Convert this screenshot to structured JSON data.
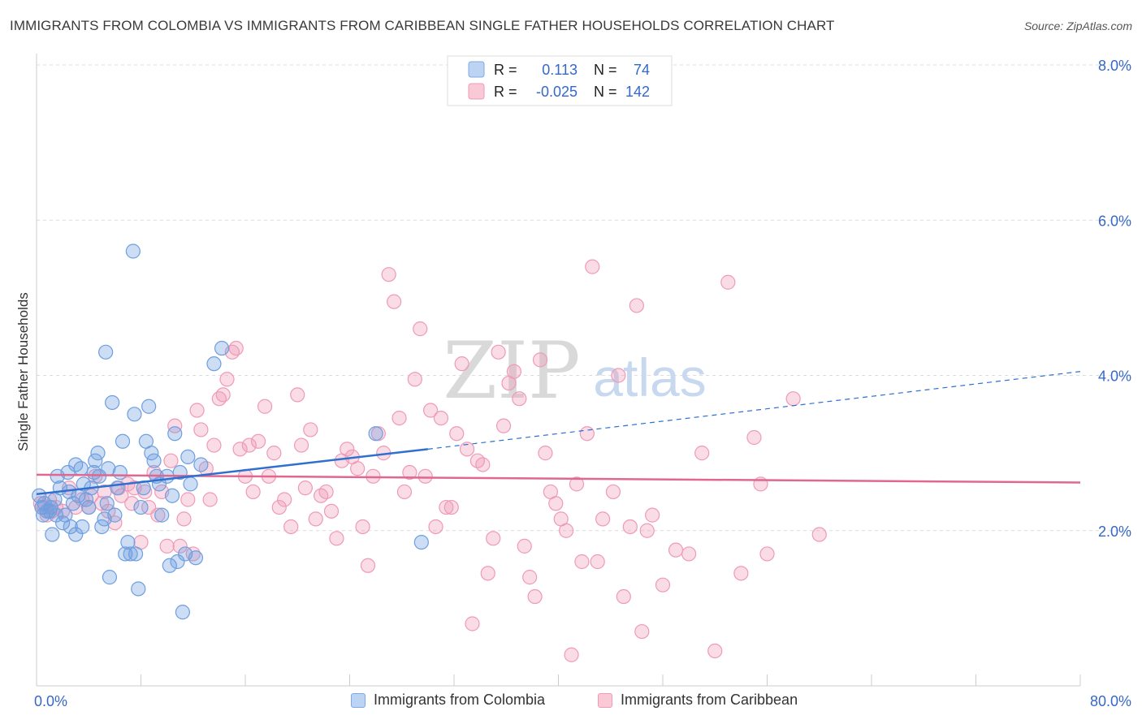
{
  "header": {
    "title": "IMMIGRANTS FROM COLOMBIA VS IMMIGRANTS FROM CARIBBEAN SINGLE FATHER HOUSEHOLDS CORRELATION CHART",
    "source": "Source: ZipAtlas.com"
  },
  "watermark": {
    "zip": "ZIP",
    "atlas": "atlas"
  },
  "stats": [
    {
      "r_label": "R =",
      "r_value": "0.113",
      "n_label": "N =",
      "n_value": "74"
    },
    {
      "r_label": "R =",
      "r_value": "-0.025",
      "n_label": "N =",
      "n_value": "142"
    }
  ],
  "legend": {
    "colombia": "Immigrants from Colombia",
    "caribbean": "Immigrants from Caribbean"
  },
  "chart_data": {
    "type": "scatter",
    "title": "IMMIGRANTS FROM COLOMBIA VS IMMIGRANTS FROM CARIBBEAN SINGLE FATHER HOUSEHOLDS CORRELATION CHART",
    "xlabel": "",
    "ylabel": "Single Father Households",
    "xlim": [
      0,
      80
    ],
    "ylim": [
      0,
      8
    ],
    "x_tick_labels": [
      "0.0%",
      "80.0%"
    ],
    "y_tick_labels": [
      "2.0%",
      "4.0%",
      "6.0%",
      "8.0%"
    ],
    "y_ticks": [
      2,
      4,
      6,
      8
    ],
    "grid": true,
    "legend_position": "bottom",
    "colors": {
      "colombia": "#6e9fe0",
      "caribbean": "#ef9ab6",
      "colombia_line": "#2e6fd0",
      "caribbean_line": "#e06790",
      "tick_label": "#3568c8"
    },
    "series": [
      {
        "name": "Immigrants from Colombia",
        "points": [
          [
            0.2,
            2.45
          ],
          [
            0.4,
            2.3
          ],
          [
            0.5,
            2.2
          ],
          [
            0.6,
            2.35
          ],
          [
            0.8,
            2.25
          ],
          [
            1.0,
            2.25
          ],
          [
            1.1,
            2.3
          ],
          [
            1.2,
            1.95
          ],
          [
            1.4,
            2.4
          ],
          [
            1.5,
            2.2
          ],
          [
            1.6,
            2.7
          ],
          [
            1.8,
            2.55
          ],
          [
            2.0,
            2.1
          ],
          [
            2.2,
            2.2
          ],
          [
            2.4,
            2.75
          ],
          [
            2.5,
            2.5
          ],
          [
            2.6,
            2.05
          ],
          [
            2.8,
            2.35
          ],
          [
            3.0,
            1.95
          ],
          [
            3.0,
            2.85
          ],
          [
            3.2,
            2.45
          ],
          [
            3.4,
            2.8
          ],
          [
            3.5,
            2.05
          ],
          [
            3.6,
            2.6
          ],
          [
            3.8,
            2.4
          ],
          [
            4.0,
            2.3
          ],
          [
            4.2,
            2.55
          ],
          [
            4.4,
            2.75
          ],
          [
            4.5,
            2.9
          ],
          [
            4.7,
            3.0
          ],
          [
            4.8,
            2.7
          ],
          [
            5.0,
            2.05
          ],
          [
            5.2,
            2.15
          ],
          [
            5.3,
            4.3
          ],
          [
            5.4,
            2.35
          ],
          [
            5.5,
            2.8
          ],
          [
            5.6,
            1.4
          ],
          [
            5.8,
            3.65
          ],
          [
            6.0,
            2.2
          ],
          [
            6.2,
            2.55
          ],
          [
            6.4,
            2.75
          ],
          [
            6.6,
            3.15
          ],
          [
            6.8,
            1.7
          ],
          [
            7.0,
            1.85
          ],
          [
            7.2,
            1.7
          ],
          [
            7.4,
            5.6
          ],
          [
            7.5,
            3.5
          ],
          [
            7.6,
            1.7
          ],
          [
            7.8,
            1.25
          ],
          [
            8.0,
            2.3
          ],
          [
            8.2,
            2.55
          ],
          [
            8.4,
            3.15
          ],
          [
            8.6,
            3.6
          ],
          [
            8.8,
            3.0
          ],
          [
            9.0,
            2.9
          ],
          [
            9.2,
            2.7
          ],
          [
            9.4,
            2.6
          ],
          [
            9.6,
            2.2
          ],
          [
            10.0,
            2.7
          ],
          [
            10.2,
            1.55
          ],
          [
            10.4,
            2.45
          ],
          [
            10.6,
            3.25
          ],
          [
            10.8,
            1.6
          ],
          [
            11.0,
            2.75
          ],
          [
            11.2,
            0.95
          ],
          [
            11.4,
            1.7
          ],
          [
            11.6,
            2.95
          ],
          [
            11.8,
            2.6
          ],
          [
            12.2,
            1.65
          ],
          [
            12.6,
            2.85
          ],
          [
            13.6,
            4.15
          ],
          [
            14.2,
            4.35
          ],
          [
            26.0,
            3.25
          ],
          [
            29.5,
            1.85
          ]
        ]
      },
      {
        "name": "Immigrants from Caribbean",
        "points": [
          [
            0.3,
            2.35
          ],
          [
            0.6,
            2.3
          ],
          [
            0.8,
            2.2
          ],
          [
            1.0,
            2.4
          ],
          [
            1.2,
            2.25
          ],
          [
            1.5,
            2.3
          ],
          [
            2.0,
            2.25
          ],
          [
            2.5,
            2.55
          ],
          [
            3.0,
            2.3
          ],
          [
            3.5,
            2.4
          ],
          [
            4.0,
            2.3
          ],
          [
            4.2,
            2.45
          ],
          [
            4.5,
            2.7
          ],
          [
            5.0,
            2.35
          ],
          [
            5.2,
            2.5
          ],
          [
            5.5,
            2.25
          ],
          [
            6.0,
            2.1
          ],
          [
            6.3,
            2.55
          ],
          [
            6.5,
            2.45
          ],
          [
            7.0,
            2.6
          ],
          [
            7.3,
            2.35
          ],
          [
            7.5,
            2.55
          ],
          [
            8.0,
            1.85
          ],
          [
            8.3,
            2.5
          ],
          [
            8.6,
            2.3
          ],
          [
            9.0,
            2.75
          ],
          [
            9.3,
            2.2
          ],
          [
            9.6,
            2.5
          ],
          [
            10.0,
            1.8
          ],
          [
            10.3,
            2.9
          ],
          [
            10.6,
            3.35
          ],
          [
            11.0,
            1.8
          ],
          [
            11.3,
            2.15
          ],
          [
            11.6,
            2.4
          ],
          [
            12.0,
            1.7
          ],
          [
            12.3,
            3.55
          ],
          [
            12.6,
            3.3
          ],
          [
            13.0,
            2.8
          ],
          [
            13.3,
            2.4
          ],
          [
            13.6,
            3.1
          ],
          [
            14.0,
            3.7
          ],
          [
            14.3,
            3.75
          ],
          [
            14.6,
            3.95
          ],
          [
            15.0,
            4.3
          ],
          [
            15.3,
            4.35
          ],
          [
            15.6,
            3.05
          ],
          [
            16.0,
            2.7
          ],
          [
            16.3,
            3.1
          ],
          [
            16.6,
            2.5
          ],
          [
            17.0,
            3.15
          ],
          [
            17.5,
            3.6
          ],
          [
            17.8,
            2.7
          ],
          [
            18.2,
            3.0
          ],
          [
            18.6,
            2.3
          ],
          [
            19.0,
            2.4
          ],
          [
            19.5,
            2.05
          ],
          [
            20.0,
            3.75
          ],
          [
            20.3,
            3.1
          ],
          [
            20.6,
            2.55
          ],
          [
            21.0,
            3.3
          ],
          [
            21.4,
            2.15
          ],
          [
            21.8,
            2.45
          ],
          [
            22.2,
            2.5
          ],
          [
            22.6,
            2.25
          ],
          [
            23.0,
            1.9
          ],
          [
            23.4,
            2.9
          ],
          [
            23.8,
            3.05
          ],
          [
            24.2,
            2.95
          ],
          [
            24.6,
            2.8
          ],
          [
            25.0,
            2.05
          ],
          [
            25.4,
            1.55
          ],
          [
            25.8,
            2.7
          ],
          [
            26.2,
            3.25
          ],
          [
            26.6,
            3.0
          ],
          [
            27.0,
            5.3
          ],
          [
            27.4,
            4.95
          ],
          [
            27.8,
            3.45
          ],
          [
            28.2,
            2.5
          ],
          [
            28.6,
            2.75
          ],
          [
            29.0,
            3.95
          ],
          [
            29.4,
            4.6
          ],
          [
            29.8,
            2.7
          ],
          [
            30.2,
            3.55
          ],
          [
            30.6,
            2.05
          ],
          [
            31.0,
            3.45
          ],
          [
            31.4,
            2.3
          ],
          [
            31.8,
            2.3
          ],
          [
            32.2,
            3.25
          ],
          [
            32.6,
            4.15
          ],
          [
            33.0,
            3.05
          ],
          [
            33.4,
            0.8
          ],
          [
            33.8,
            2.9
          ],
          [
            34.2,
            2.85
          ],
          [
            34.6,
            1.45
          ],
          [
            35.0,
            1.9
          ],
          [
            35.4,
            4.3
          ],
          [
            35.8,
            3.35
          ],
          [
            36.2,
            3.9
          ],
          [
            36.6,
            4.05
          ],
          [
            37.0,
            3.7
          ],
          [
            37.4,
            1.8
          ],
          [
            37.8,
            1.4
          ],
          [
            38.2,
            1.15
          ],
          [
            38.6,
            4.2
          ],
          [
            39.0,
            3.0
          ],
          [
            39.4,
            2.5
          ],
          [
            39.8,
            2.35
          ],
          [
            40.2,
            2.15
          ],
          [
            40.6,
            2.0
          ],
          [
            41.0,
            0.4
          ],
          [
            41.4,
            2.6
          ],
          [
            41.8,
            1.6
          ],
          [
            42.2,
            3.25
          ],
          [
            42.6,
            5.4
          ],
          [
            43.0,
            1.6
          ],
          [
            43.4,
            2.15
          ],
          [
            44.2,
            2.5
          ],
          [
            44.6,
            4.0
          ],
          [
            45.0,
            1.15
          ],
          [
            46.0,
            4.9
          ],
          [
            46.4,
            0.7
          ],
          [
            46.8,
            2.0
          ],
          [
            47.2,
            2.2
          ],
          [
            48.0,
            1.3
          ],
          [
            49.0,
            1.75
          ],
          [
            50.0,
            1.7
          ],
          [
            51.0,
            3.0
          ],
          [
            52.0,
            0.45
          ],
          [
            53.0,
            5.2
          ],
          [
            54.0,
            1.45
          ],
          [
            55.0,
            3.2
          ],
          [
            56.0,
            1.7
          ],
          [
            58.0,
            3.7
          ],
          [
            60.0,
            1.95
          ],
          [
            55.5,
            2.6
          ],
          [
            45.5,
            2.05
          ]
        ]
      }
    ],
    "trend_lines": [
      {
        "name": "Immigrants from Colombia",
        "solid": [
          [
            0,
            2.47
          ],
          [
            30,
            3.05
          ]
        ],
        "dashed": [
          [
            30,
            3.05
          ],
          [
            80,
            4.05
          ]
        ]
      },
      {
        "name": "Immigrants from Caribbean",
        "solid": [
          [
            0,
            2.72
          ],
          [
            80,
            2.62
          ]
        ]
      }
    ]
  }
}
